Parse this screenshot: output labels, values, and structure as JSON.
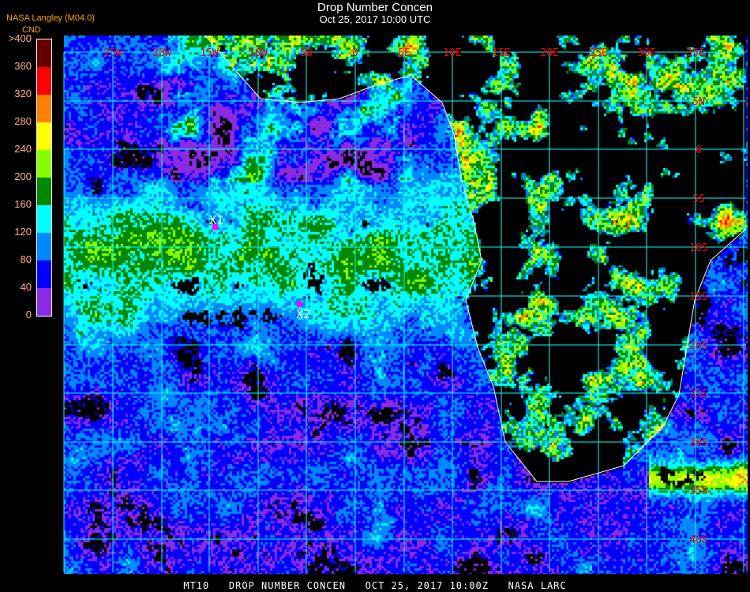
{
  "header": {
    "title": "Drop Number Concen",
    "subtitle": "Oct 25, 2017 10:00 UTC",
    "organization": "NASA Langley (M04.0)"
  },
  "colorbar": {
    "unit": "CND",
    "ticks": [
      ">400",
      "360",
      "320",
      "280",
      "240",
      "200",
      "160",
      "120",
      "80",
      "40",
      "0"
    ],
    "colors": [
      "#660000",
      "#ff0000",
      "#ff8000",
      "#ffff00",
      "#88ff00",
      "#008800",
      "#00ffff",
      "#0088ff",
      "#0000ff",
      "#8a2be2"
    ]
  },
  "map": {
    "longitude_labels": [
      "25W",
      "20W",
      "15W",
      "10W",
      "5W",
      "0",
      "5E",
      "10E",
      "15E",
      "20E",
      "25E",
      "30E",
      "35E"
    ],
    "latitude_labels": [
      "5N",
      "0",
      "5S",
      "10S",
      "15S",
      "20S",
      "25S",
      "30S",
      "35S",
      "40S"
    ],
    "grid_color": "#00ffff",
    "label_color": "#ff0000",
    "coastline_color": "#ffffff",
    "markers": [
      {
        "label": "X1",
        "color": "#ff00ff"
      },
      {
        "label": "X2",
        "color": "#ff00ff"
      }
    ]
  },
  "footer": {
    "text": "MT10   DROP NUMBER CONCEN   OCT 25, 2017 10:00Z   NASA LARC"
  }
}
